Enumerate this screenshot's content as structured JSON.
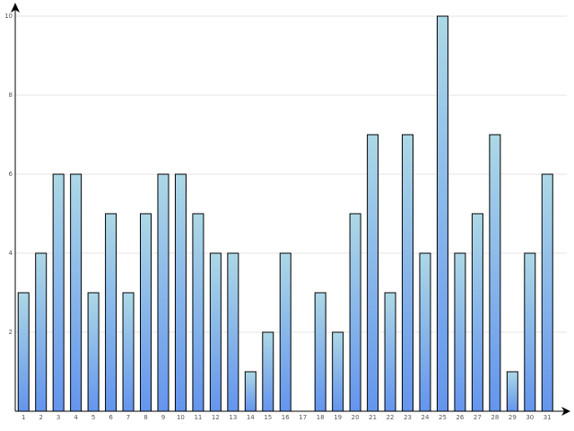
{
  "chart_data": {
    "type": "bar",
    "categories": [
      "1",
      "2",
      "3",
      "4",
      "5",
      "6",
      "7",
      "8",
      "9",
      "10",
      "11",
      "12",
      "13",
      "14",
      "15",
      "16",
      "17",
      "18",
      "19",
      "20",
      "21",
      "22",
      "23",
      "24",
      "25",
      "26",
      "27",
      "28",
      "29",
      "30",
      "31"
    ],
    "values": [
      3,
      4,
      6,
      6,
      3,
      5,
      3,
      5,
      6,
      6,
      5,
      4,
      4,
      1,
      2,
      4,
      0,
      3,
      2,
      5,
      7,
      3,
      7,
      4,
      10,
      4,
      5,
      7,
      1,
      4,
      6
    ],
    "color": [
      "#add8e6",
      "#6495ed"
    ],
    "ylim": [
      0,
      10
    ],
    "yticks": [
      2,
      4,
      6,
      8,
      10
    ],
    "grid": true
  }
}
